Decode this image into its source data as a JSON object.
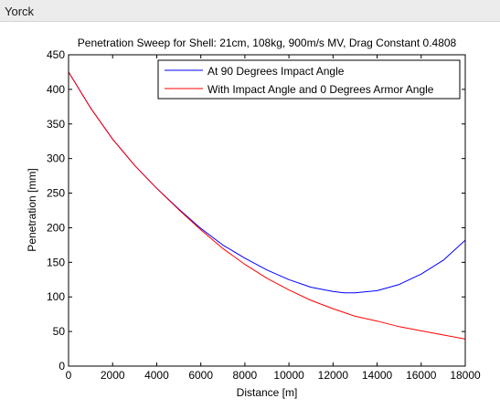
{
  "window": {
    "title": "Yorck"
  },
  "chart_data": {
    "type": "line",
    "title": "Penetration Sweep for Shell: 21cm, 108kg, 900m/s MV, Drag Constant 0.4808",
    "xlabel": "Distance [m]",
    "ylabel": "Penetration [mm]",
    "xlim": [
      0,
      18000
    ],
    "ylim": [
      0,
      450
    ],
    "xticks": [
      0,
      2000,
      4000,
      6000,
      8000,
      10000,
      12000,
      14000,
      16000,
      18000
    ],
    "yticks": [
      0,
      50,
      100,
      150,
      200,
      250,
      300,
      350,
      400,
      450
    ],
    "grid": false,
    "legend_position": "top-right",
    "series": [
      {
        "name": "At 90 Degrees Impact Angle",
        "color": "#0000ff",
        "x": [
          0,
          1000,
          2000,
          3000,
          4000,
          5000,
          6000,
          7000,
          8000,
          9000,
          10000,
          11000,
          12000,
          12500,
          13000,
          14000,
          15000,
          16000,
          17000,
          18000
        ],
        "y": [
          425,
          373,
          328,
          290,
          257,
          227,
          199,
          175,
          156,
          139,
          125,
          114,
          108,
          106,
          106,
          109,
          118,
          133,
          153,
          182
        ]
      },
      {
        "name": "With Impact Angle and 0 Degrees Armor Angle",
        "color": "#ff0000",
        "x": [
          0,
          1000,
          2000,
          3000,
          4000,
          5000,
          6000,
          7000,
          8000,
          9000,
          10000,
          11000,
          12000,
          13000,
          14000,
          15000,
          16000,
          17000,
          18000
        ],
        "y": [
          425,
          373,
          328,
          290,
          257,
          226,
          197,
          170,
          147,
          127,
          110,
          95,
          83,
          72,
          65,
          57,
          51,
          45,
          39
        ]
      }
    ]
  }
}
